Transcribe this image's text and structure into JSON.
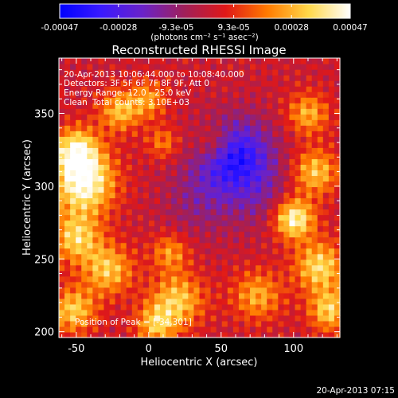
{
  "colorbar": {
    "tick_labels": [
      "-0.00047",
      "-0.00028",
      "-9.3e-05",
      "9.3e-05",
      "0.00028",
      "0.00047"
    ],
    "tick_values": [
      -0.00047,
      -0.00028,
      -9.3e-05,
      9.3e-05,
      0.00028,
      0.00047
    ],
    "range": [
      -0.00047,
      0.00047
    ],
    "units_label": "(photons cm⁻² s⁻¹ asec⁻²)"
  },
  "chart_data": {
    "type": "heatmap",
    "title": "Reconstructed RHESSI Image",
    "xlabel": "Heliocentric X (arcsec)",
    "ylabel": "Heliocentric Y (arcsec)",
    "xlim": [
      -62,
      132
    ],
    "ylim": [
      196,
      388
    ],
    "xticks": [
      -50,
      0,
      50,
      100
    ],
    "yticks": [
      200,
      250,
      300,
      350
    ],
    "grid": false,
    "colormap": "blue-purple-red-yellow-white (RHESSI)",
    "colormap_stops": [
      "#0000ff",
      "#3a1aff",
      "#6a22c8",
      "#a0205a",
      "#e01818",
      "#ff7a00",
      "#ffd84a",
      "#ffffff"
    ],
    "peak_position": [
      -34,
      301
    ],
    "annotations": {
      "time": "20-Apr-2013 10:06:44.000 to 10:08:40.000",
      "detectors": "Detectors: 3F 5F 6F 7F 8F 9F, Att 0",
      "energy": "Energy Range: 12.0 - 25.0 keV",
      "clean_label": "Clean",
      "counts": "Total counts: 3.10E+03",
      "peak": "Position of Peak = [-34,301]"
    },
    "sources": [
      {
        "x": -45,
        "y": 303,
        "intensity": 0.00046,
        "spread": 15
      },
      {
        "x": -50,
        "y": 325,
        "intensity": 0.00036,
        "spread": 11
      },
      {
        "x": -50,
        "y": 265,
        "intensity": 0.00032,
        "spread": 12
      },
      {
        "x": -52,
        "y": 215,
        "intensity": 0.00031,
        "spread": 11
      },
      {
        "x": -28,
        "y": 243,
        "intensity": 0.0003,
        "spread": 12
      },
      {
        "x": -20,
        "y": 352,
        "intensity": 0.00028,
        "spread": 10
      },
      {
        "x": 0,
        "y": 360,
        "intensity": 0.00022,
        "spread": 9
      },
      {
        "x": 10,
        "y": 330,
        "intensity": 0.00018,
        "spread": 8
      },
      {
        "x": 15,
        "y": 255,
        "intensity": 0.00022,
        "spread": 9
      },
      {
        "x": 20,
        "y": 222,
        "intensity": 0.0003,
        "spread": 13
      },
      {
        "x": 5,
        "y": 205,
        "intensity": 0.00027,
        "spread": 10
      },
      {
        "x": 45,
        "y": 330,
        "intensity": 0.00018,
        "spread": 9
      },
      {
        "x": 75,
        "y": 225,
        "intensity": 0.00025,
        "spread": 12
      },
      {
        "x": 100,
        "y": 278,
        "intensity": 0.00044,
        "spread": 10
      },
      {
        "x": 118,
        "y": 245,
        "intensity": 0.00034,
        "spread": 12
      },
      {
        "x": 115,
        "y": 310,
        "intensity": 0.0003,
        "spread": 11
      },
      {
        "x": 110,
        "y": 350,
        "intensity": 0.00026,
        "spread": 10
      },
      {
        "x": 125,
        "y": 215,
        "intensity": 0.00032,
        "spread": 10
      },
      {
        "x": 60,
        "y": 320,
        "intensity": -0.0004,
        "spread": 18
      },
      {
        "x": 35,
        "y": 290,
        "intensity": -0.00012,
        "spread": 18
      },
      {
        "x": 80,
        "y": 290,
        "intensity": -0.0001,
        "spread": 16
      }
    ]
  },
  "footer": {
    "timestamp": "20-Apr-2013 07:15"
  }
}
